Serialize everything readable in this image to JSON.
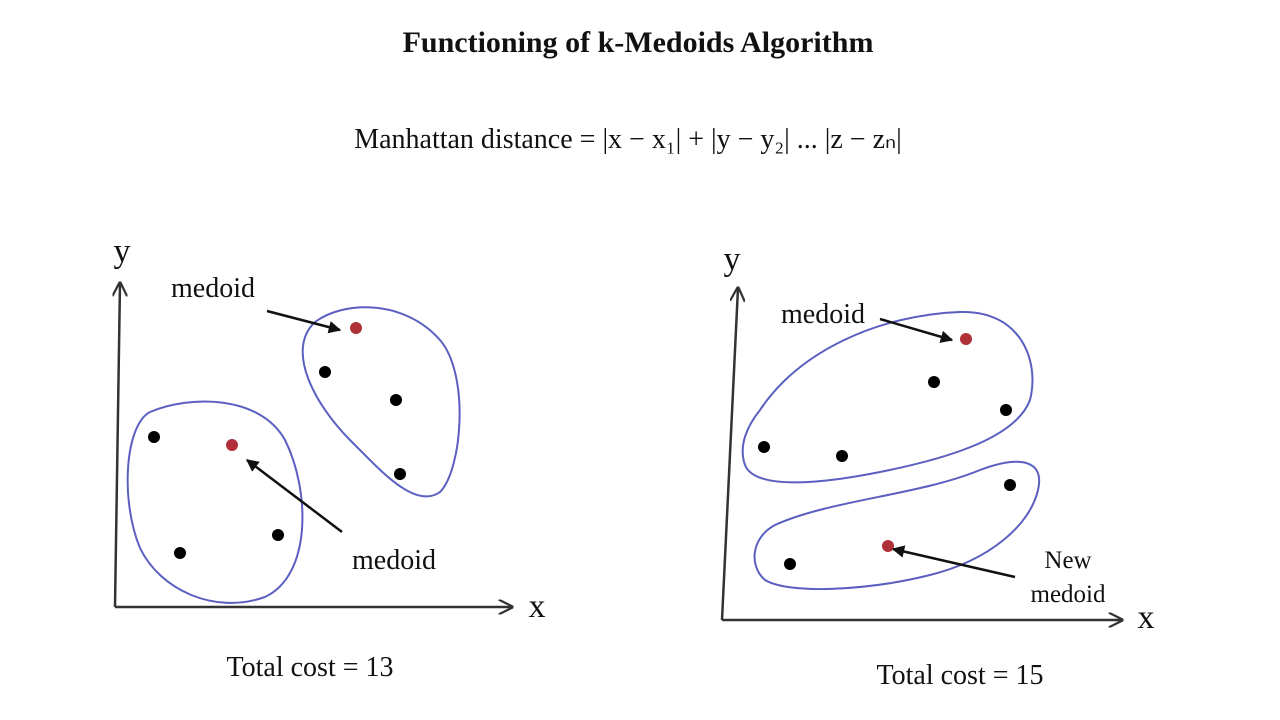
{
  "header": {
    "title": "Functioning of k-Medoids Algorithm"
  },
  "formula": "Manhattan distance = |x − x₁| + |y − y₂| ... |z − zₙ|",
  "panels": [
    {
      "y_axis": "y",
      "x_axis": "x",
      "labels": [
        "medoid",
        "medoid"
      ],
      "caption": "Total cost = 13"
    },
    {
      "y_axis": "y",
      "x_axis": "x",
      "labels": [
        "medoid",
        "New",
        "medoid"
      ],
      "caption": "Total cost = 15"
    }
  ]
}
